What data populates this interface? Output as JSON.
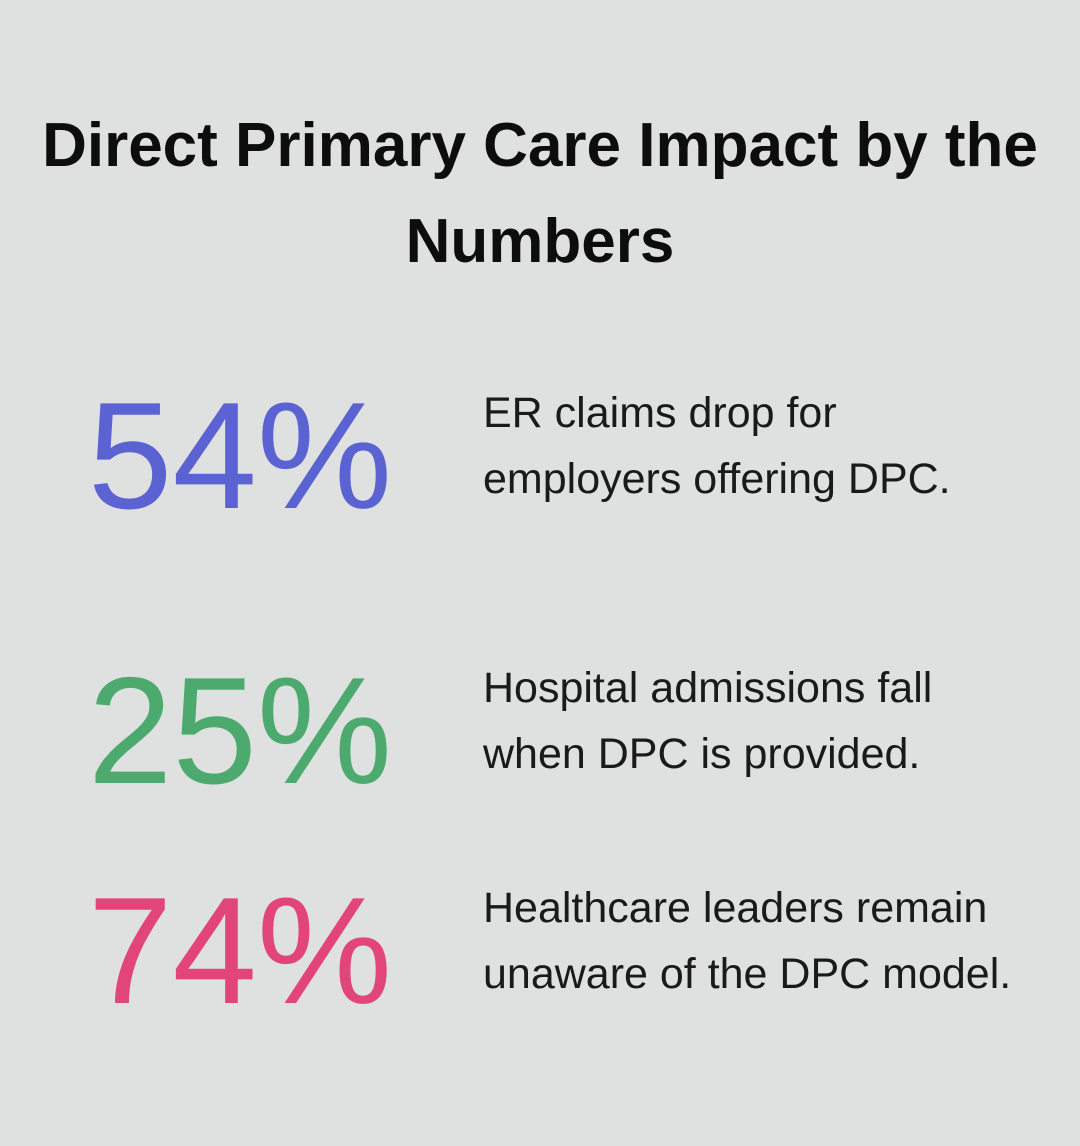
{
  "title": "Direct Primary Care Impact by the Numbers",
  "stats": [
    {
      "value": "54%",
      "color": "#5b63d3",
      "text": "ER claims drop for employers offering DPC."
    },
    {
      "value": "25%",
      "color": "#4caa6e",
      "text": "Hospital admissions fall when DPC is provided."
    },
    {
      "value": "74%",
      "color": "#e2457a",
      "text": "Healthcare leaders remain unaware of the DPC model."
    }
  ]
}
